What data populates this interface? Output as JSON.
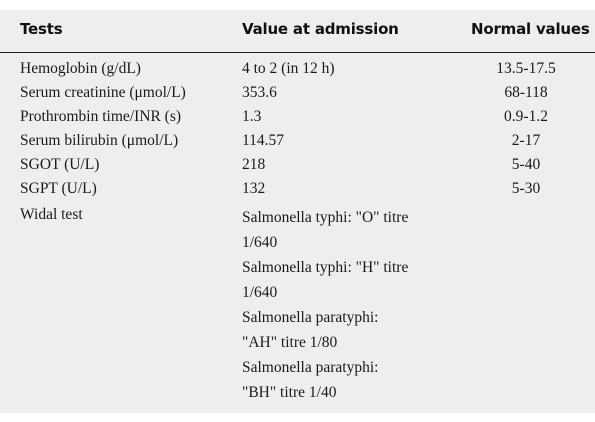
{
  "table": {
    "headers": {
      "tests": "Tests",
      "value_at_admission": "Value at admission",
      "normal_values": "Normal values"
    },
    "rows": [
      {
        "test": "Hemoglobin (g/dL)",
        "value": "4 to 2 (in 12 h)",
        "normal": "13.5-17.5"
      },
      {
        "test": "Serum creatinine (μmol/L)",
        "value": "353.6",
        "normal": "68-118"
      },
      {
        "test": "Prothrombin time/INR (s)",
        "value": "1.3",
        "normal": "0.9-1.2"
      },
      {
        "test": "Serum bilirubin (μmol/L)",
        "value": "114.57",
        "normal": "2-17"
      },
      {
        "test": "SGOT (U/L)",
        "value": "218",
        "normal": "5-40"
      },
      {
        "test": "SGPT (U/L)",
        "value": "132",
        "normal": "5-30"
      }
    ],
    "widal": {
      "test": "Widal test",
      "lines": [
        "Salmonella typhi: \"O\" titre",
        "1/640",
        "Salmonella typhi: \"H\" titre",
        "1/640",
        "Salmonella paratyphi:",
        "\"AH\" titre 1/80",
        "Salmonella paratyphi:",
        "\"BH\" titre 1/40"
      ]
    }
  }
}
